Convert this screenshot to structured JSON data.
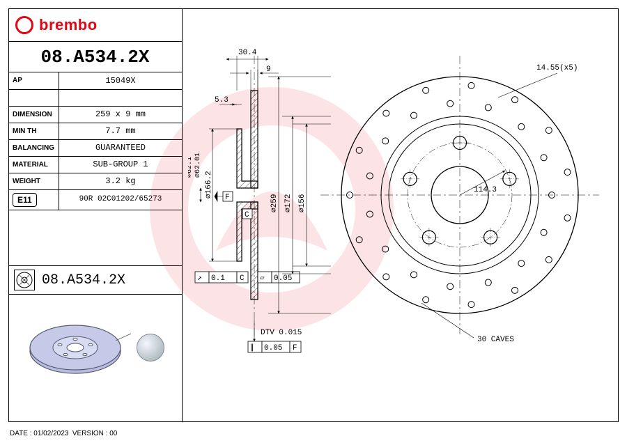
{
  "brand": "brembo",
  "part_number": "08.A534.2X",
  "spec_rows": [
    {
      "label": "AP",
      "value": "15049X"
    },
    {
      "label": "",
      "value": ""
    },
    {
      "label": "DIMENSION",
      "value": "259 x 9 mm"
    },
    {
      "label": "MIN TH",
      "value": "7.7 mm"
    },
    {
      "label": "BALANCING",
      "value": "GUARANTEED"
    },
    {
      "label": "MATERIAL",
      "value": "SUB-GROUP 1"
    },
    {
      "label": "WEIGHT",
      "value": "3.2 kg"
    }
  ],
  "approval": {
    "mark": "E11",
    "code": "90R 02C01202/65273"
  },
  "part_number_2": "08.A534.2X",
  "footer": {
    "date": "01/02/2023",
    "version": "00"
  },
  "drawing": {
    "type": "engineering-drawing",
    "units": "mm",
    "section_view": {
      "overall_width": 30.4,
      "friction_ring_thickness": 9,
      "hat_offset": 5.3,
      "hat_height": 166.2,
      "bore_dia_max": 62.1,
      "bore_dia_min": 62.01,
      "flatness_tol": 0.05,
      "runout_tol": 0.1,
      "dtv": 0.015,
      "gd_t_f_tol": 0.05,
      "datum_f": "F",
      "datum_c": "C"
    },
    "front_view": {
      "outer_dia": 259,
      "raised_dia": 172,
      "hub_face_dia": 156,
      "bolt_circle_dia": 114.3,
      "bolt_hole_dia": 14.55,
      "bolt_hole_count": 5,
      "drill_holes": 30,
      "drill_label": "30 CAVES"
    },
    "colors": {
      "line": "#000000",
      "hatch": "#000000",
      "bg": "#ffffff",
      "watermark": "#E30613",
      "render_fill": "#b8bde0",
      "render_edge": "#55586b"
    },
    "line_widths": {
      "outline": 1.3,
      "thin": 0.6,
      "center": 0.5
    },
    "fonts": {
      "dim_size_pt": 11,
      "dim_family": "Courier New"
    }
  }
}
